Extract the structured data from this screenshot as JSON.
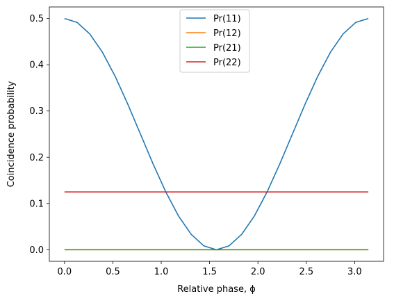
{
  "chart_data": {
    "type": "line",
    "xlabel": "Relative phase, ϕ",
    "ylabel": "Coincidence probability",
    "xlim": [
      -0.157,
      3.299
    ],
    "ylim": [
      -0.025,
      0.525
    ],
    "xticks": [
      0.0,
      0.5,
      1.0,
      1.5,
      2.0,
      2.5,
      3.0
    ],
    "xtick_labels": [
      "0.0",
      "0.5",
      "1.0",
      "1.5",
      "2.0",
      "2.5",
      "3.0"
    ],
    "yticks": [
      0.0,
      0.1,
      0.2,
      0.3,
      0.4,
      0.5
    ],
    "ytick_labels": [
      "0.0",
      "0.1",
      "0.2",
      "0.3",
      "0.4",
      "0.5"
    ],
    "grid": false,
    "legend_position": "top-center",
    "x": [
      0.0,
      0.1309,
      0.2618,
      0.3927,
      0.5236,
      0.6545,
      0.7854,
      0.9163,
      1.0472,
      1.1781,
      1.309,
      1.4399,
      1.5708,
      1.7017,
      1.8326,
      1.9635,
      2.0944,
      2.2253,
      2.3562,
      2.4871,
      2.618,
      2.7489,
      2.8798,
      3.0107,
      3.1416
    ],
    "series": [
      {
        "name": "Pr(11)",
        "color": "#1f77b4",
        "values": [
          0.5,
          0.4915,
          0.4665,
          0.4268,
          0.375,
          0.3147,
          0.25,
          0.1853,
          0.125,
          0.0732,
          0.0335,
          0.0085,
          0.0,
          0.0085,
          0.0335,
          0.0732,
          0.125,
          0.1853,
          0.25,
          0.3147,
          0.375,
          0.4268,
          0.4665,
          0.4915,
          0.5
        ]
      },
      {
        "name": "Pr(12)",
        "color": "#ff7f0e",
        "values": [
          0.0,
          0.0,
          0.0,
          0.0,
          0.0,
          0.0,
          0.0,
          0.0,
          0.0,
          0.0,
          0.0,
          0.0,
          0.0,
          0.0,
          0.0,
          0.0,
          0.0,
          0.0,
          0.0,
          0.0,
          0.0,
          0.0,
          0.0,
          0.0,
          0.0
        ]
      },
      {
        "name": "Pr(21)",
        "color": "#2ca02c",
        "values": [
          0.0,
          0.0,
          0.0,
          0.0,
          0.0,
          0.0,
          0.0,
          0.0,
          0.0,
          0.0,
          0.0,
          0.0,
          0.0,
          0.0,
          0.0,
          0.0,
          0.0,
          0.0,
          0.0,
          0.0,
          0.0,
          0.0,
          0.0,
          0.0,
          0.0
        ]
      },
      {
        "name": "Pr(22)",
        "color": "#d62728",
        "values": [
          0.125,
          0.125,
          0.125,
          0.125,
          0.125,
          0.125,
          0.125,
          0.125,
          0.125,
          0.125,
          0.125,
          0.125,
          0.125,
          0.125,
          0.125,
          0.125,
          0.125,
          0.125,
          0.125,
          0.125,
          0.125,
          0.125,
          0.125,
          0.125,
          0.125
        ]
      }
    ]
  }
}
